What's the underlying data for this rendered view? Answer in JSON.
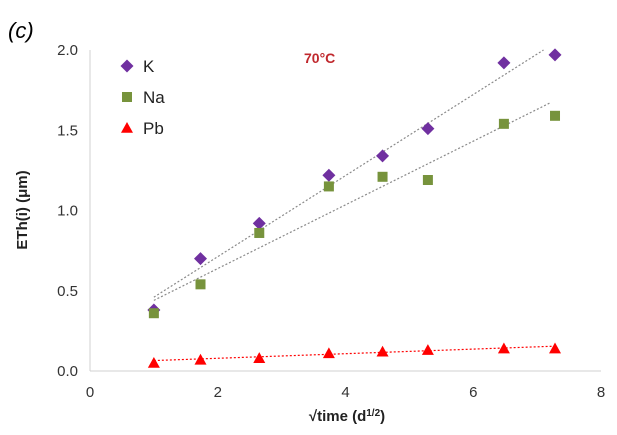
{
  "panel_label": "(c)",
  "chart_data": {
    "type": "scatter",
    "annotation": "70°C",
    "xlabel_prefix": "√time (d",
    "xlabel_sup": "1/2",
    "xlabel_suffix": ")",
    "ylabel": "ETh(i) (μm)",
    "xlim": [
      0,
      8
    ],
    "ylim": [
      0,
      2.0
    ],
    "xticks": [
      "0",
      "2",
      "4",
      "6",
      "8"
    ],
    "yticks": [
      "0.0",
      "0.5",
      "1.0",
      "1.5",
      "2.0"
    ],
    "xgrid": false,
    "ygrid": false,
    "legend_position": "top-left",
    "series": [
      {
        "name": "K",
        "marker": "diamond",
        "color": "#7030a0",
        "x": [
          1.0,
          1.73,
          2.65,
          3.74,
          4.58,
          5.29,
          6.48,
          7.28
        ],
        "y": [
          0.38,
          0.7,
          0.92,
          1.22,
          1.34,
          1.51,
          1.92,
          1.97
        ],
        "trend": [
          [
            1.0,
            0.46
          ],
          [
            7.1,
            2.0
          ]
        ]
      },
      {
        "name": "Na",
        "marker": "square",
        "color": "#77933c",
        "x": [
          1.0,
          1.73,
          2.65,
          3.74,
          4.58,
          5.29,
          6.48,
          7.28
        ],
        "y": [
          0.36,
          0.54,
          0.86,
          1.15,
          1.21,
          1.19,
          1.54,
          1.59
        ],
        "trend": [
          [
            1.0,
            0.44
          ],
          [
            7.2,
            1.67
          ]
        ]
      },
      {
        "name": "Pb",
        "marker": "triangle",
        "color": "#ff0000",
        "x": [
          1.0,
          1.73,
          2.65,
          3.74,
          4.58,
          5.29,
          6.48,
          7.28
        ],
        "y": [
          0.05,
          0.07,
          0.08,
          0.11,
          0.12,
          0.13,
          0.14,
          0.14
        ],
        "trend": [
          [
            1.0,
            0.065
          ],
          [
            7.3,
            0.155
          ]
        ]
      }
    ]
  }
}
